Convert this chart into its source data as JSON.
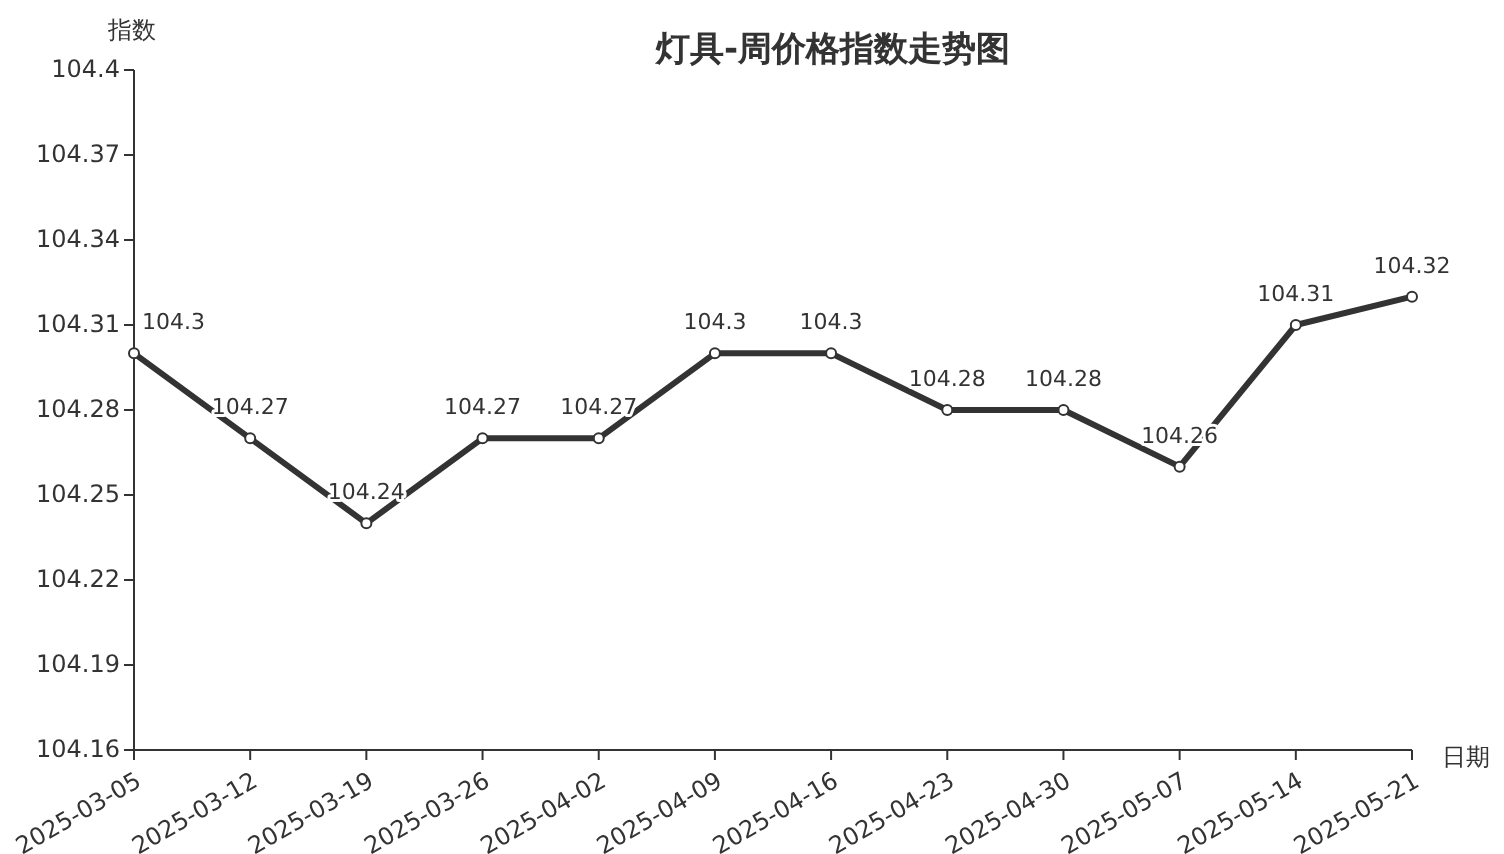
{
  "chart_data": {
    "type": "line",
    "title": "灯具-周价格指数走势图",
    "xlabel": "日期",
    "ylabel": "指数",
    "categories": [
      "2025-03-05",
      "2025-03-12",
      "2025-03-19",
      "2025-03-26",
      "2025-04-02",
      "2025-04-09",
      "2025-04-16",
      "2025-04-23",
      "2025-04-30",
      "2025-05-07",
      "2025-05-14",
      "2025-05-21"
    ],
    "series": [
      {
        "color": "#333333",
        "values": [
          104.3,
          104.27,
          104.24,
          104.27,
          104.27,
          104.3,
          104.3,
          104.28,
          104.28,
          104.26,
          104.31,
          104.32
        ]
      }
    ],
    "ylim": [
      104.16,
      104.4
    ],
    "yticks": [
      104.16,
      104.19,
      104.22,
      104.25,
      104.28,
      104.31,
      104.34,
      104.37,
      104.4
    ],
    "data_labels": true,
    "marker": "circle",
    "line_style": "solid",
    "grid": false
  }
}
